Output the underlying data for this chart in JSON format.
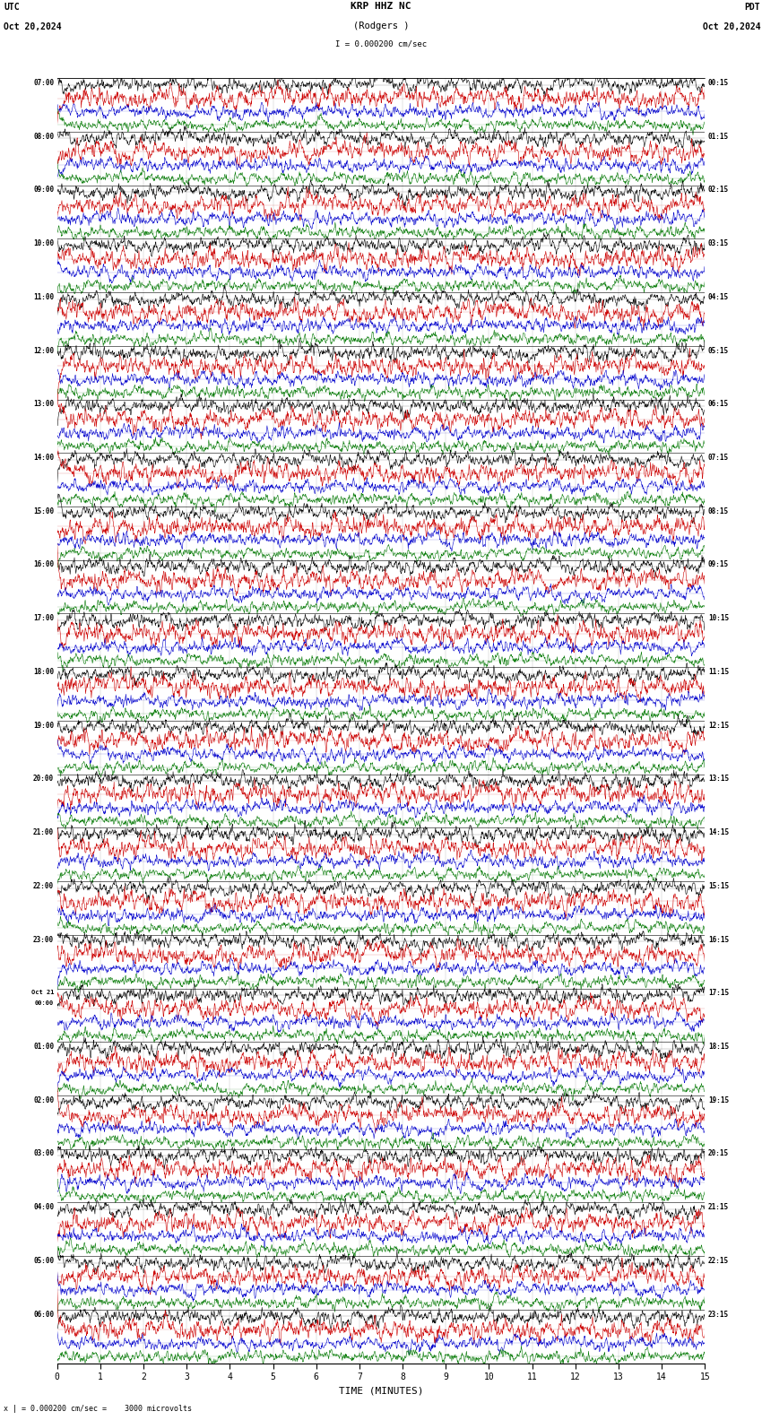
{
  "title_center": "KRP HHZ NC",
  "subtitle_center": "(Rodgers )",
  "scale_text": "I = 0.000200 cm/sec",
  "label_left_top": "UTC",
  "label_left_date": "Oct 20,2024",
  "label_right_top": "PDT",
  "label_right_date": "Oct 20,2024",
  "bottom_label": "TIME (MINUTES)",
  "bottom_note": "x | = 0.000200 cm/sec =    3000 microvolts",
  "left_times": [
    "07:00",
    "08:00",
    "09:00",
    "10:00",
    "11:00",
    "12:00",
    "13:00",
    "14:00",
    "15:00",
    "16:00",
    "17:00",
    "18:00",
    "19:00",
    "20:00",
    "21:00",
    "22:00",
    "23:00",
    "Oct 21\n00:00",
    "01:00",
    "02:00",
    "03:00",
    "04:00",
    "05:00",
    "06:00"
  ],
  "right_times": [
    "00:15",
    "01:15",
    "02:15",
    "03:15",
    "04:15",
    "05:15",
    "06:15",
    "07:15",
    "08:15",
    "09:15",
    "10:15",
    "11:15",
    "12:15",
    "13:15",
    "14:15",
    "15:15",
    "16:15",
    "17:15",
    "18:15",
    "19:15",
    "20:15",
    "21:15",
    "22:15",
    "23:15"
  ],
  "trace_color_list": [
    "#000000",
    "#cc0000",
    "#0000cc",
    "#007700"
  ],
  "traces_per_block": 4,
  "n_blocks": 24,
  "n_points": 1800,
  "fig_width": 8.5,
  "fig_height": 15.84,
  "bg_color": "white",
  "amplitude_scale": [
    0.28,
    0.38,
    0.25,
    0.22
  ],
  "x_ticks": [
    0,
    1,
    2,
    3,
    4,
    5,
    6,
    7,
    8,
    9,
    10,
    11,
    12,
    13,
    14,
    15
  ],
  "dpi": 100,
  "trace_linewidth": 0.4,
  "block_sep_linewidth": 0.5,
  "baseline_linewidth": 0.3
}
